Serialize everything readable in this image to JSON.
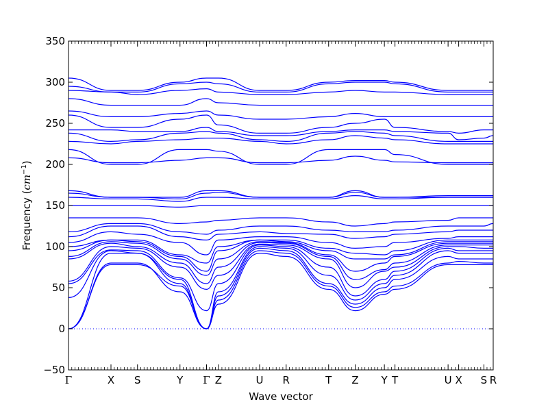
{
  "chart_data": {
    "type": "line",
    "xlabel": "Wave vector",
    "ylabel_prefix": "Frequency (",
    "ylabel_unit_base": "cm",
    "ylabel_unit_exp": "−1",
    "ylabel_suffix": ")",
    "ylim": [
      -50,
      350
    ],
    "yticks": [
      -50,
      0,
      50,
      100,
      150,
      200,
      250,
      300,
      350
    ],
    "xlim": [
      0,
      16
    ],
    "line_color": "#0000ff",
    "zero_line": {
      "y": 0,
      "style": "dotted",
      "color": "#0000ff"
    },
    "kpoints": [
      {
        "label": "Γ",
        "x": 0
      },
      {
        "label": "X",
        "x": 1.6
      },
      {
        "label": "S",
        "x": 2.6
      },
      {
        "label": "Y",
        "x": 4.2
      },
      {
        "label": "Γ",
        "x": 5.2
      },
      {
        "label": "Z",
        "x": 5.65
      },
      {
        "label": "U",
        "x": 7.2
      },
      {
        "label": "R",
        "x": 8.2
      },
      {
        "label": "T",
        "x": 9.8
      },
      {
        "label": "Z",
        "x": 10.8
      },
      {
        "label": "Y",
        "x": 11.9
      },
      {
        "label": "T",
        "x": 12.3
      },
      {
        "label": "U",
        "x": 14.3
      },
      {
        "label": "X",
        "x": 14.7
      },
      {
        "label": "S",
        "x": 15.65
      },
      {
        "label": "R",
        "x": 16
      }
    ],
    "bands": [
      [
        0,
        78,
        78,
        52,
        0,
        30,
        92,
        88,
        48,
        22,
        42,
        48,
        78,
        78,
        78,
        78
      ],
      [
        0,
        80,
        80,
        45,
        0,
        35,
        95,
        92,
        52,
        26,
        45,
        52,
        80,
        82,
        80,
        80
      ],
      [
        0,
        92,
        92,
        55,
        0,
        40,
        98,
        95,
        55,
        30,
        50,
        60,
        88,
        85,
        85,
        85
      ],
      [
        38,
        95,
        92,
        60,
        0,
        45,
        100,
        98,
        65,
        35,
        55,
        65,
        95,
        92,
        92,
        92
      ],
      [
        55,
        96,
        95,
        62,
        22,
        55,
        102,
        100,
        75,
        40,
        60,
        70,
        98,
        95,
        95,
        95
      ],
      [
        58,
        100,
        98,
        75,
        48,
        65,
        103,
        102,
        85,
        50,
        70,
        75,
        100,
        100,
        98,
        98
      ],
      [
        85,
        104,
        100,
        80,
        55,
        75,
        105,
        104,
        88,
        60,
        72,
        80,
        102,
        102,
        102,
        102
      ],
      [
        88,
        106,
        104,
        85,
        65,
        85,
        106,
        105,
        90,
        70,
        80,
        88,
        104,
        104,
        104,
        104
      ],
      [
        95,
        108,
        106,
        88,
        70,
        95,
        108,
        106,
        95,
        85,
        85,
        90,
        106,
        106,
        106,
        106
      ],
      [
        100,
        108,
        108,
        90,
        80,
        100,
        108,
        108,
        98,
        92,
        90,
        95,
        108,
        108,
        108,
        108
      ],
      [
        105,
        118,
        115,
        105,
        90,
        108,
        112,
        112,
        105,
        98,
        100,
        105,
        110,
        112,
        112,
        112
      ],
      [
        112,
        125,
        125,
        112,
        108,
        115,
        118,
        116,
        115,
        110,
        112,
        115,
        118,
        120,
        120,
        120
      ],
      [
        118,
        128,
        128,
        118,
        115,
        120,
        125,
        125,
        120,
        118,
        118,
        120,
        125,
        125,
        125,
        128
      ],
      [
        135,
        135,
        135,
        128,
        130,
        132,
        135,
        135,
        130,
        125,
        128,
        130,
        132,
        135,
        135,
        135
      ],
      [
        150,
        150,
        150,
        148,
        150,
        150,
        150,
        150,
        150,
        150,
        150,
        150,
        150,
        150,
        150,
        150
      ],
      [
        160,
        158,
        158,
        155,
        160,
        160,
        158,
        158,
        158,
        162,
        158,
        158,
        160,
        160,
        160,
        160
      ],
      [
        165,
        160,
        160,
        158,
        165,
        166,
        160,
        160,
        160,
        166,
        160,
        160,
        160,
        160,
        160,
        160
      ],
      [
        168,
        160,
        160,
        160,
        168,
        168,
        160,
        160,
        160,
        168,
        160,
        160,
        162,
        162,
        162,
        162
      ],
      [
        208,
        202,
        202,
        205,
        208,
        208,
        202,
        202,
        205,
        210,
        205,
        203,
        202,
        202,
        202,
        202
      ],
      [
        218,
        200,
        200,
        218,
        218,
        216,
        200,
        200,
        218,
        218,
        218,
        212,
        200,
        200,
        200,
        200
      ],
      [
        228,
        225,
        228,
        230,
        232,
        232,
        228,
        225,
        230,
        235,
        232,
        230,
        225,
        225,
        225,
        225
      ],
      [
        238,
        228,
        230,
        238,
        240,
        238,
        230,
        228,
        238,
        240,
        238,
        235,
        228,
        228,
        228,
        228
      ],
      [
        242,
        242,
        240,
        240,
        245,
        240,
        235,
        235,
        240,
        242,
        242,
        240,
        238,
        230,
        232,
        235
      ],
      [
        260,
        245,
        245,
        255,
        260,
        248,
        238,
        238,
        245,
        250,
        255,
        245,
        240,
        238,
        242,
        242
      ],
      [
        265,
        258,
        258,
        262,
        265,
        260,
        255,
        255,
        258,
        262,
        258,
        258,
        258,
        258,
        258,
        258
      ],
      [
        280,
        272,
        272,
        272,
        280,
        275,
        272,
        272,
        272,
        272,
        272,
        272,
        272,
        272,
        272,
        272
      ],
      [
        290,
        288,
        285,
        290,
        292,
        288,
        285,
        285,
        288,
        290,
        288,
        288,
        285,
        285,
        285,
        285
      ],
      [
        295,
        288,
        288,
        298,
        300,
        298,
        288,
        288,
        298,
        300,
        300,
        298,
        288,
        288,
        288,
        288
      ],
      [
        305,
        290,
        290,
        300,
        305,
        305,
        290,
        290,
        300,
        302,
        302,
        300,
        290,
        290,
        290,
        290
      ]
    ]
  }
}
